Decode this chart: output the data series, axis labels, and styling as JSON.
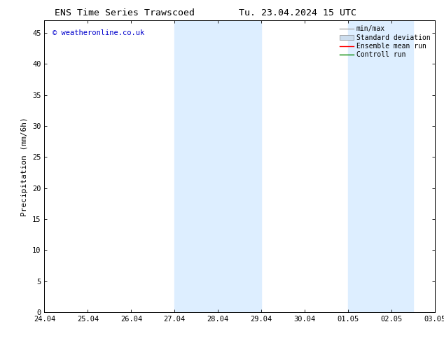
{
  "title_left": "ENS Time Series Trawscoed",
  "title_right": "Tu. 23.04.2024 15 UTC",
  "ylabel": "Precipitation (mm/6h)",
  "watermark": "© weatheronline.co.uk",
  "x_tick_labels": [
    "24.04",
    "25.04",
    "26.04",
    "27.04",
    "28.04",
    "29.04",
    "30.04",
    "01.05",
    "02.05",
    "03.05"
  ],
  "x_tick_positions": [
    0,
    1,
    2,
    3,
    4,
    5,
    6,
    7,
    8,
    9
  ],
  "ylim": [
    0,
    47
  ],
  "yticks": [
    0,
    5,
    10,
    15,
    20,
    25,
    30,
    35,
    40,
    45
  ],
  "shaded_regions": [
    {
      "x_start": 3.0,
      "x_end": 5.0,
      "color": "#ddeeff"
    },
    {
      "x_start": 7.0,
      "x_end": 8.5,
      "color": "#ddeeff"
    }
  ],
  "legend_entries": [
    {
      "label": "min/max",
      "color": "#aaaaaa",
      "lw": 1.0
    },
    {
      "label": "Standard deviation",
      "color": "#ccddee",
      "lw": 5.0
    },
    {
      "label": "Ensemble mean run",
      "color": "#ff0000",
      "lw": 1.0
    },
    {
      "label": "Controll run",
      "color": "#008800",
      "lw": 1.0
    }
  ],
  "bg_color": "#ffffff",
  "spine_color": "#000000",
  "title_fontsize": 9.5,
  "label_fontsize": 8,
  "tick_fontsize": 7.5,
  "legend_fontsize": 7,
  "watermark_color": "#0000cc",
  "watermark_fontsize": 7.5
}
